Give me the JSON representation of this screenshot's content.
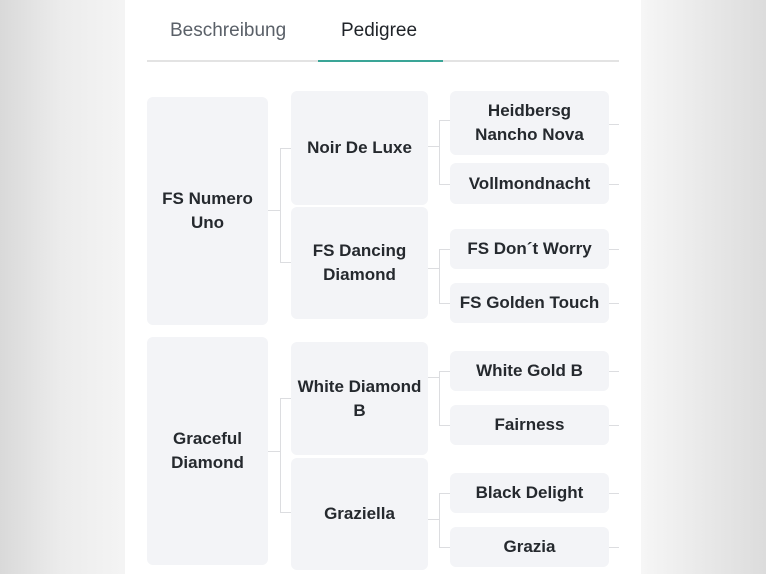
{
  "tabs": [
    {
      "label": "Beschreibung",
      "active": false
    },
    {
      "label": "Pedigree",
      "active": true
    }
  ],
  "accent_color": "#3aa597",
  "pedigree": {
    "parents": [
      "FS Numero Uno",
      "Graceful Diamond"
    ],
    "grandparents": [
      "Noir De Luxe",
      "FS Dancing Diamond",
      "White Diamond B",
      "Graziella"
    ],
    "great_grandparents": [
      "Heidbersg Nancho Nova",
      "Vollmondnacht",
      "FS Don´t Worry",
      "FS Golden Touch",
      "White Gold B",
      "Fairness",
      "Black Delight",
      "Grazia"
    ]
  }
}
